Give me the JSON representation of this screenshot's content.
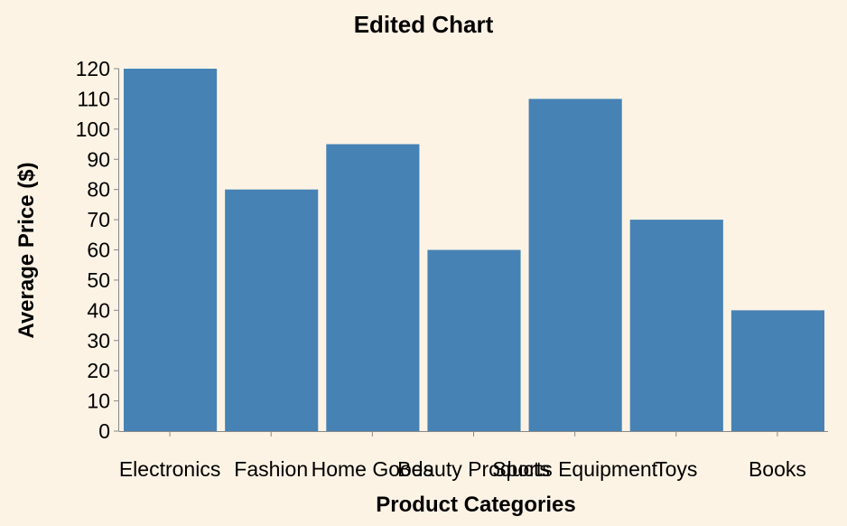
{
  "chart_data": {
    "type": "bar",
    "title": "Edited Chart",
    "xlabel": "Product Categories",
    "ylabel": "Average Price ($)",
    "categories": [
      "Electronics",
      "Fashion",
      "Home Goods",
      "Beauty Products",
      "Sports Equipment",
      "Toys",
      "Books"
    ],
    "values": [
      120,
      80,
      95,
      60,
      110,
      70,
      40
    ],
    "ylim": [
      0,
      120
    ],
    "yticks": [
      0,
      10,
      20,
      30,
      40,
      50,
      60,
      70,
      80,
      90,
      100,
      110,
      120
    ],
    "grid": false,
    "bar_color": "#4682b4",
    "background": "#fdf3e5"
  }
}
